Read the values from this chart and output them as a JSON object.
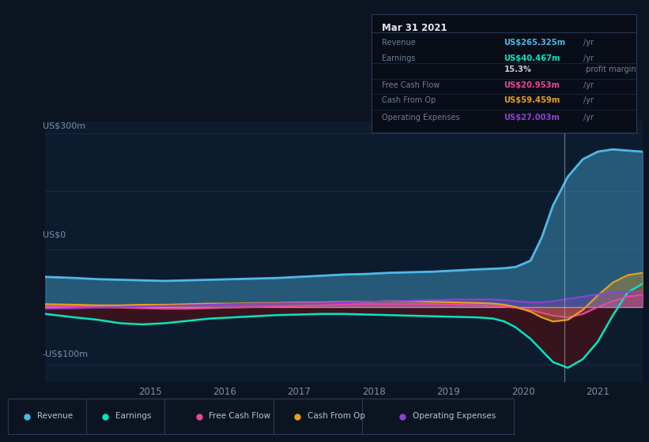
{
  "bg_color": "#0d1421",
  "plot_bg_color": "#0d1b2e",
  "grid_color": "#1a2d45",
  "text_color": "#7a8fa8",
  "white_color": "#ffffff",
  "ylabel_300": "US$300m",
  "ylabel_0": "US$0",
  "ylabel_n100": "-US$100m",
  "xlim_start": 2013.6,
  "xlim_end": 2021.6,
  "ylim_min": -130,
  "ylim_max": 320,
  "xticks": [
    2015,
    2016,
    2017,
    2018,
    2019,
    2020,
    2021
  ],
  "colors": {
    "revenue": "#4eb8e8",
    "earnings": "#00e8c0",
    "free_cash_flow": "#e84899",
    "cash_from_op": "#e8a020",
    "operating_expenses": "#9040d0"
  },
  "revenue": {
    "x": [
      2013.6,
      2014.0,
      2014.3,
      2014.6,
      2014.9,
      2015.2,
      2015.5,
      2015.8,
      2016.1,
      2016.4,
      2016.7,
      2017.0,
      2017.3,
      2017.6,
      2017.9,
      2018.2,
      2018.5,
      2018.8,
      2019.1,
      2019.4,
      2019.6,
      2019.75,
      2019.9,
      2020.1,
      2020.25,
      2020.4,
      2020.6,
      2020.8,
      2021.0,
      2021.2,
      2021.4,
      2021.6
    ],
    "y": [
      52,
      50,
      48,
      47,
      46,
      45,
      46,
      47,
      48,
      49,
      50,
      52,
      54,
      56,
      57,
      59,
      60,
      61,
      63,
      65,
      66,
      67,
      69,
      80,
      120,
      175,
      225,
      255,
      268,
      272,
      270,
      268
    ]
  },
  "earnings": {
    "x": [
      2013.6,
      2014.0,
      2014.3,
      2014.6,
      2014.9,
      2015.2,
      2015.5,
      2015.8,
      2016.1,
      2016.4,
      2016.7,
      2017.0,
      2017.3,
      2017.6,
      2017.9,
      2018.2,
      2018.5,
      2018.8,
      2019.1,
      2019.4,
      2019.6,
      2019.75,
      2019.9,
      2020.1,
      2020.25,
      2020.4,
      2020.6,
      2020.8,
      2021.0,
      2021.2,
      2021.4,
      2021.6
    ],
    "y": [
      -12,
      -18,
      -22,
      -28,
      -30,
      -28,
      -24,
      -20,
      -18,
      -16,
      -14,
      -13,
      -12,
      -12,
      -13,
      -14,
      -15,
      -16,
      -17,
      -18,
      -20,
      -25,
      -35,
      -55,
      -75,
      -95,
      -105,
      -90,
      -60,
      -15,
      25,
      40
    ]
  },
  "free_cash_flow": {
    "x": [
      2013.6,
      2014.0,
      2014.3,
      2014.6,
      2014.9,
      2015.2,
      2015.5,
      2015.8,
      2016.1,
      2016.4,
      2016.7,
      2017.0,
      2017.3,
      2017.6,
      2017.9,
      2018.2,
      2018.5,
      2018.8,
      2019.1,
      2019.4,
      2019.6,
      2019.75,
      2019.9,
      2020.1,
      2020.25,
      2020.4,
      2020.6,
      2020.8,
      2021.0,
      2021.2,
      2021.4,
      2021.6
    ],
    "y": [
      2,
      1,
      0,
      -1,
      -2,
      -3,
      -3,
      -2,
      -1,
      0,
      1,
      2,
      3,
      4,
      5,
      5,
      5,
      5,
      4,
      3,
      2,
      1,
      -1,
      -5,
      -10,
      -15,
      -18,
      -12,
      0,
      10,
      18,
      21
    ]
  },
  "cash_from_op": {
    "x": [
      2013.6,
      2014.0,
      2014.3,
      2014.6,
      2014.9,
      2015.2,
      2015.5,
      2015.8,
      2016.1,
      2016.4,
      2016.7,
      2017.0,
      2017.3,
      2017.6,
      2017.9,
      2018.2,
      2018.5,
      2018.8,
      2019.1,
      2019.4,
      2019.6,
      2019.75,
      2019.9,
      2020.1,
      2020.25,
      2020.4,
      2020.6,
      2020.8,
      2021.0,
      2021.2,
      2021.4,
      2021.6
    ],
    "y": [
      5,
      4,
      3,
      3,
      4,
      4,
      5,
      6,
      6,
      7,
      7,
      8,
      8,
      9,
      9,
      10,
      10,
      9,
      8,
      7,
      6,
      4,
      0,
      -8,
      -18,
      -25,
      -22,
      -5,
      20,
      42,
      55,
      59
    ]
  },
  "operating_expenses": {
    "x": [
      2013.6,
      2014.0,
      2014.3,
      2014.6,
      2014.9,
      2015.2,
      2015.5,
      2015.8,
      2016.1,
      2016.4,
      2016.7,
      2017.0,
      2017.3,
      2017.6,
      2017.9,
      2018.2,
      2018.5,
      2018.8,
      2019.1,
      2019.4,
      2019.6,
      2019.75,
      2019.9,
      2020.1,
      2020.25,
      2020.4,
      2020.6,
      2020.8,
      2021.0,
      2021.2,
      2021.4,
      2021.6
    ],
    "y": [
      -3,
      -2,
      -1,
      0,
      1,
      2,
      3,
      4,
      5,
      6,
      6,
      7,
      7,
      8,
      9,
      10,
      11,
      12,
      13,
      13,
      13,
      12,
      10,
      8,
      8,
      10,
      14,
      18,
      22,
      25,
      26,
      27
    ]
  },
  "vertical_line_x": 2020.55,
  "tooltip": {
    "title": "Mar 31 2021",
    "rows": [
      {
        "label": "Revenue",
        "value": "US$265.325m",
        "unit": "/yr",
        "color": "#4eb8e8"
      },
      {
        "label": "Earnings",
        "value": "US$40.467m",
        "unit": "/yr",
        "color": "#00e8c0"
      },
      {
        "label": "",
        "value": "15.3%",
        "unit": " profit margin",
        "color": "#cccccc"
      },
      {
        "label": "Free Cash Flow",
        "value": "US$20.953m",
        "unit": "/yr",
        "color": "#e84899"
      },
      {
        "label": "Cash From Op",
        "value": "US$59.459m",
        "unit": "/yr",
        "color": "#e8a020"
      },
      {
        "label": "Operating Expenses",
        "value": "US$27.003m",
        "unit": "/yr",
        "color": "#9040d0"
      }
    ]
  },
  "legend_items": [
    {
      "label": "Revenue",
      "color": "#4eb8e8"
    },
    {
      "label": "Earnings",
      "color": "#00e8c0"
    },
    {
      "label": "Free Cash Flow",
      "color": "#e84899"
    },
    {
      "label": "Cash From Op",
      "color": "#e8a020"
    },
    {
      "label": "Operating Expenses",
      "color": "#9040d0"
    }
  ]
}
